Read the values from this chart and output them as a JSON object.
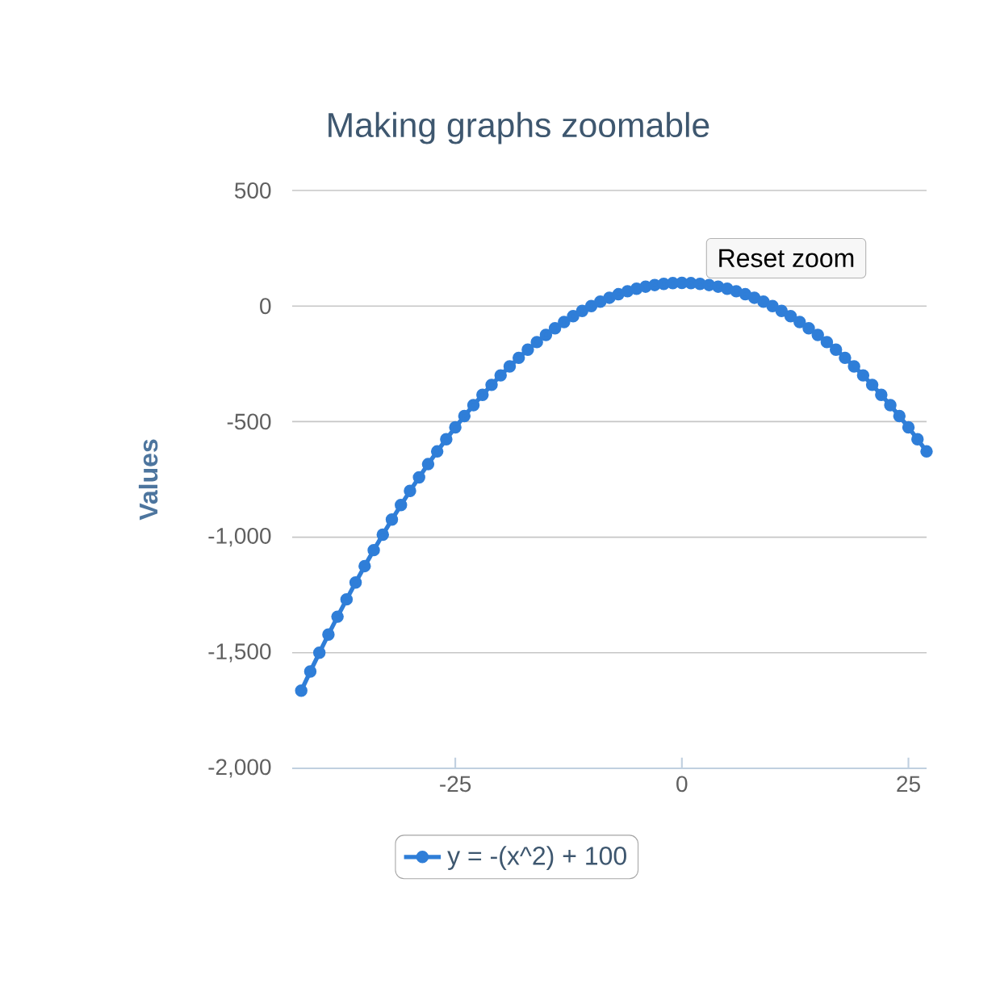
{
  "chart_data": {
    "type": "line",
    "title": "Making graphs zoomable",
    "ylabel": "Values",
    "annotations": [
      "Reset zoom"
    ],
    "x": [
      -42,
      -41,
      -40,
      -39,
      -38,
      -37,
      -36,
      -35,
      -34,
      -33,
      -32,
      -31,
      -30,
      -29,
      -28,
      -27,
      -26,
      -25,
      -24,
      -23,
      -22,
      -21,
      -20,
      -19,
      -18,
      -17,
      -16,
      -15,
      -14,
      -13,
      -12,
      -11,
      -10,
      -9,
      -8,
      -7,
      -6,
      -5,
      -4,
      -3,
      -2,
      -1,
      0,
      1,
      2,
      3,
      4,
      5,
      6,
      7,
      8,
      9,
      10,
      11,
      12,
      13,
      14,
      15,
      16,
      17,
      18,
      19,
      20,
      21,
      22,
      23,
      24,
      25,
      26,
      27
    ],
    "series": [
      {
        "name": "y = -(x^2) + 100",
        "color": "#2f7ed8",
        "values": [
          -1664,
          -1581,
          -1500,
          -1421,
          -1344,
          -1269,
          -1196,
          -1125,
          -1056,
          -989,
          -924,
          -861,
          -800,
          -741,
          -684,
          -629,
          -576,
          -525,
          -476,
          -429,
          -384,
          -341,
          -300,
          -261,
          -224,
          -189,
          -156,
          -125,
          -96,
          -69,
          -44,
          -21,
          0,
          19,
          36,
          51,
          64,
          75,
          84,
          91,
          96,
          99,
          100,
          99,
          96,
          91,
          84,
          75,
          64,
          51,
          36,
          19,
          0,
          -21,
          -44,
          -69,
          -96,
          -125,
          -156,
          -189,
          -224,
          -261,
          -300,
          -341,
          -384,
          -429,
          -476,
          -525,
          -576,
          -629
        ]
      }
    ],
    "xlim": [
      -43,
      27
    ],
    "ylim": [
      -2000,
      500
    ],
    "xticks": [
      -25,
      0,
      25
    ],
    "yticks": [
      {
        "value": -2000,
        "label": "-2,000"
      },
      {
        "value": -1500,
        "label": "-1,500"
      },
      {
        "value": -1000,
        "label": "-1,000"
      },
      -500,
      0,
      500
    ],
    "grid": "y",
    "legend": "bottom",
    "marker": "circle",
    "line_style": "solid"
  }
}
